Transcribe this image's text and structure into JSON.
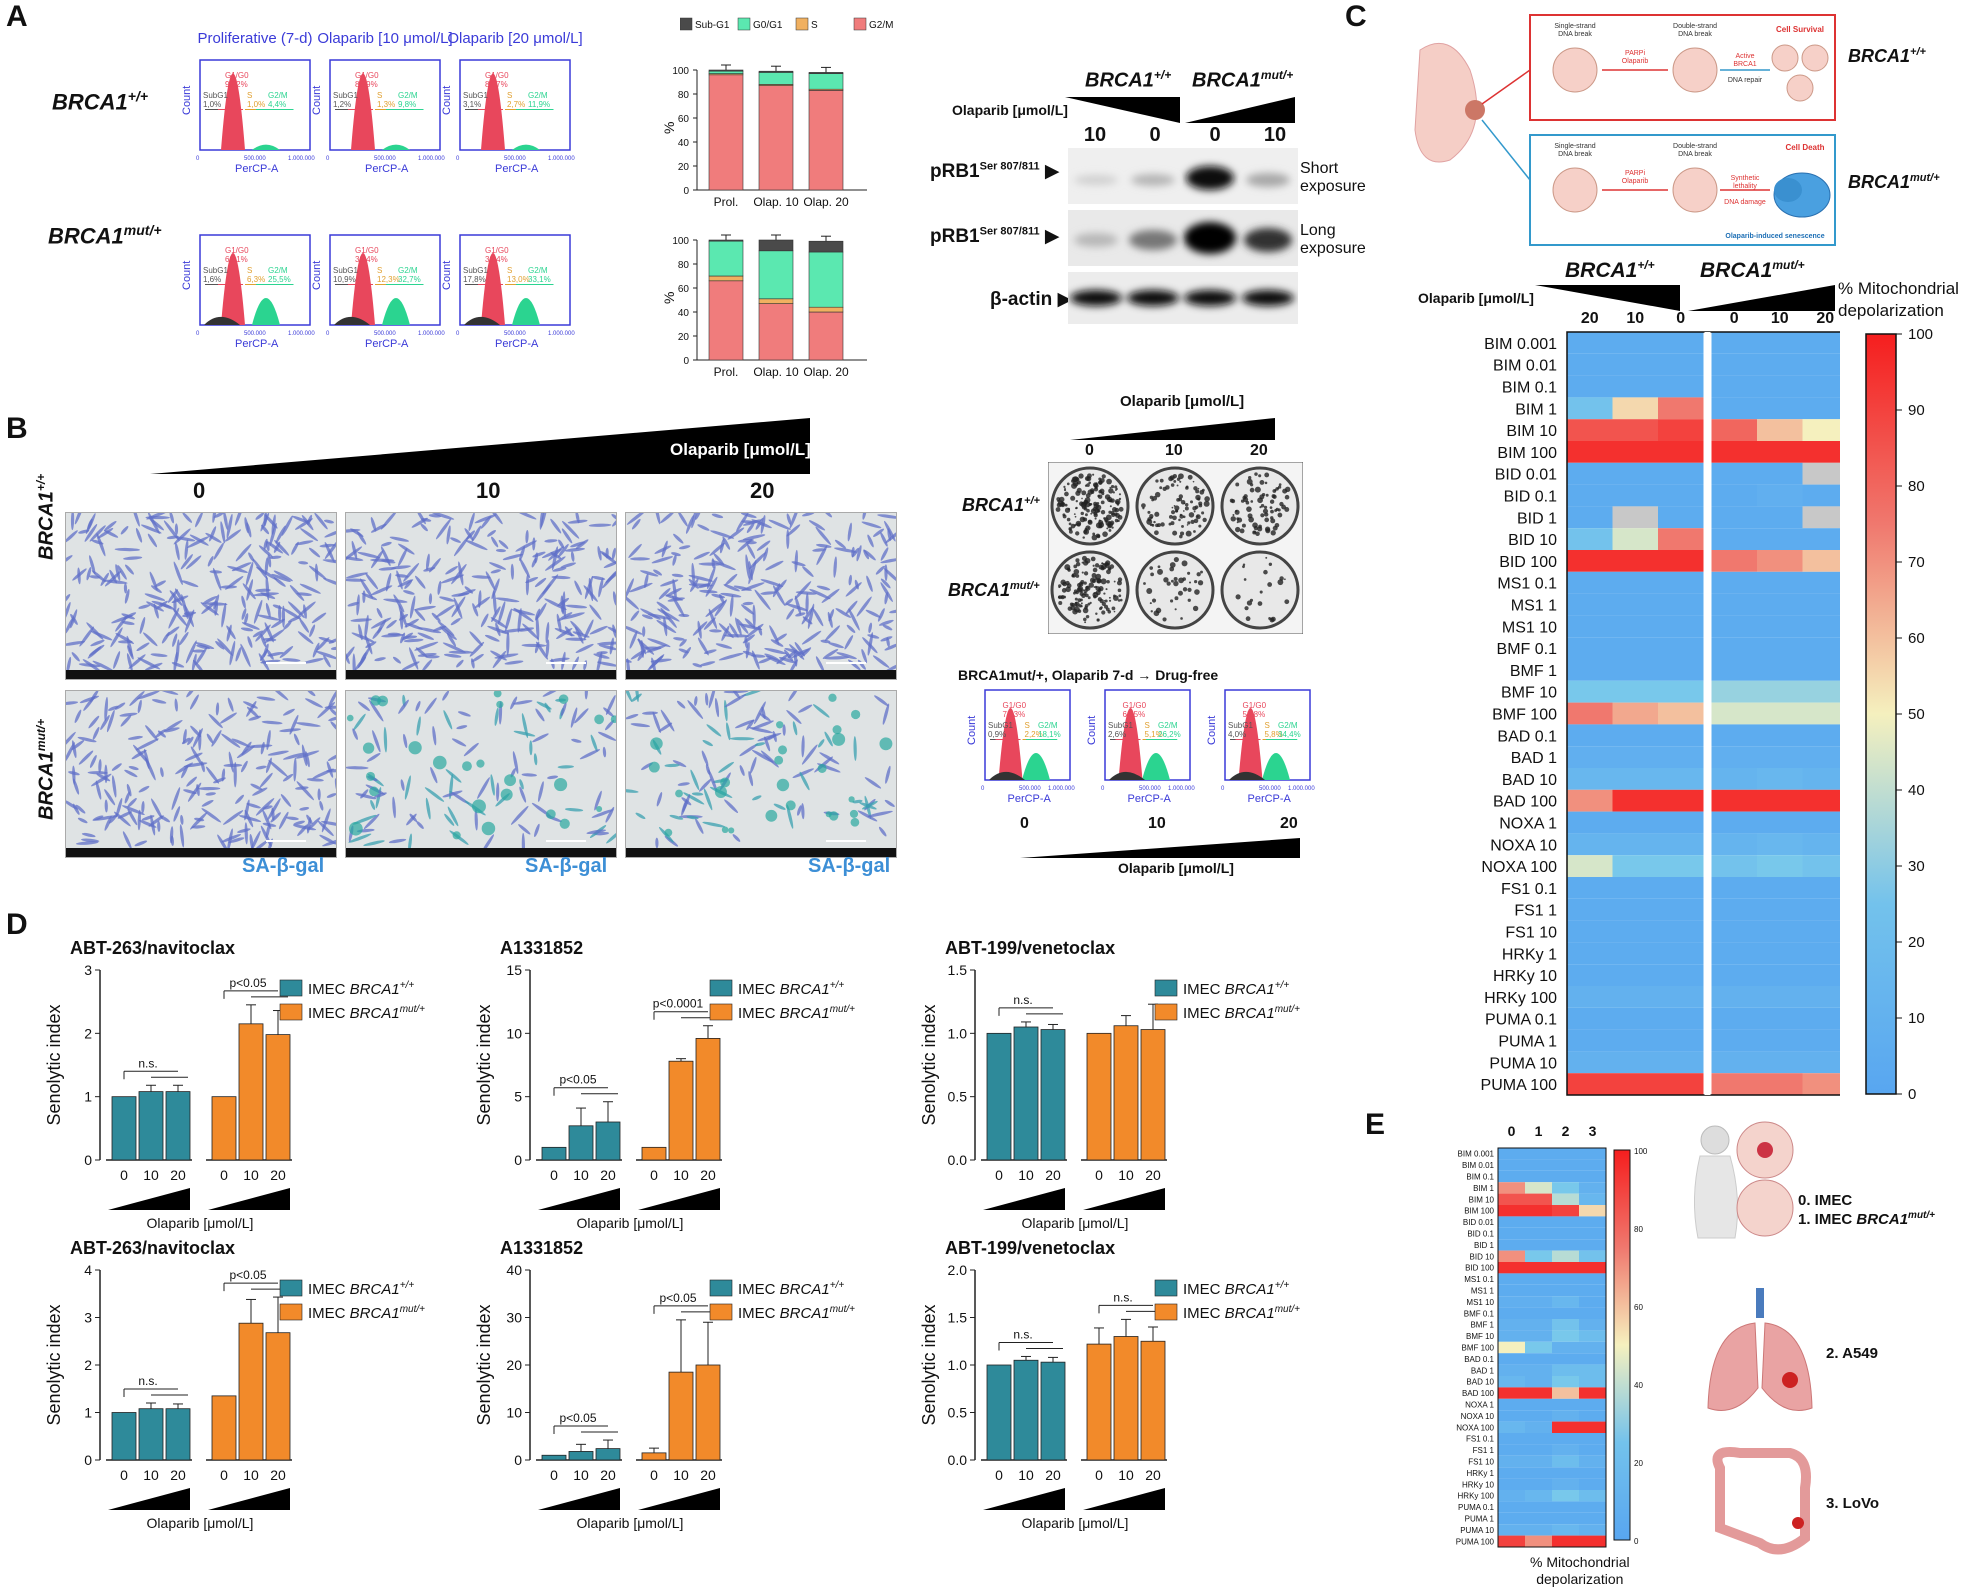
{
  "panels": {
    "a": "A",
    "b": "B",
    "c": "C",
    "d": "D",
    "e": "E"
  },
  "genotypes": {
    "wt": "BRCA1",
    "wt_sup": "+/+",
    "mut": "BRCA1",
    "mut_sup": "mut/+"
  },
  "flow": {
    "titles": [
      "Proliferative (7-d)",
      "Olaparib [10 μmol/L]",
      "Olaparib [20 μmol/L]"
    ],
    "xaxis": "PerCP-A",
    "yaxis": "Count",
    "ticks": [
      "0",
      "500.000",
      "1.000.000"
    ],
    "wt": [
      {
        "g1": "G1/G0\n93,2%",
        "sub": "SubG1\n1,0%",
        "s": "S\n1,0%",
        "g2": "G2/M\n4,4%"
      },
      {
        "g1": "G1/G0\n86,9%",
        "sub": "SubG1\n1,2%",
        "s": "S\n1,3%",
        "g2": "G2/M\n9,8%"
      },
      {
        "g1": "G1/G0\n81,7%",
        "sub": "SubG1\n3,1%",
        "s": "S\n2,7%",
        "g2": "G2/M\n11,9%"
      }
    ],
    "mut": [
      {
        "g1": "G1/G0\n63,1%",
        "sub": "SubG1\n1,6%",
        "s": "S\n6,3%",
        "g2": "G2/M\n25,5%"
      },
      {
        "g1": "G1/G0\n38,4%",
        "sub": "SubG1\n10,9%",
        "s": "S\n12,3%",
        "g2": "G2/M\n32,7%"
      },
      {
        "g1": "G1/G0\n33,4%",
        "sub": "SubG1\n17,8%",
        "s": "S\n13,0%",
        "g2": "G2/M\n33,1%"
      }
    ]
  },
  "cellcycle": {
    "legend": [
      "Sub-G1",
      "G0/G1",
      "S",
      "G2/M"
    ],
    "colors": [
      "#4a4a4a",
      "#5be8b0",
      "#f0b060",
      "#f07c7c"
    ],
    "ylabel": "%",
    "yticks": [
      "0",
      "20",
      "40",
      "60",
      "80",
      "100"
    ],
    "categories": [
      "Prol.",
      "Olap. 10",
      "Olap. 20"
    ]
  },
  "western": {
    "olaparib_label": "Olaparib [μmol/L]",
    "doses": [
      "10",
      "0",
      "0",
      "10"
    ],
    "rows": [
      "pRB1",
      "pRB1",
      "β-actin"
    ],
    "sup": "Ser 807/811",
    "exposures": [
      "Short\nexposure",
      "Long\nexposure"
    ]
  },
  "panelB": {
    "olaparib_label": "Olaparib [μmol/L]",
    "doses": [
      "0",
      "10",
      "20"
    ],
    "stain": "SA-β-gal",
    "colony_doses": [
      "0",
      "10",
      "20"
    ],
    "flow_title": "BRCA1mut/+, Olaparib 7-d → Drug-free",
    "flow_doses": [
      "0",
      "10",
      "20"
    ]
  },
  "panelC": {
    "diagram": {
      "ssb": "Single-strand\nDNA break",
      "parp": "PARPi\nOlaparib",
      "dsb": "Double-strand\nDNA break",
      "active": "Active\nBRCA1",
      "repair": "DNA repair",
      "survival": "Cell Survival",
      "synthetic": "Synthetic\nlethality",
      "damage": "DNA damage",
      "death": "Cell Death",
      "senescence": "Olaparib-induced senescence"
    },
    "olaparib_label": "Olaparib [μmol/L]",
    "doses": [
      "20",
      "10",
      "0",
      "0",
      "10",
      "20"
    ],
    "legend_title": "% Mitochondrial depolarization",
    "legend_ticks": [
      "100",
      "90",
      "80",
      "70",
      "60",
      "50",
      "40",
      "30",
      "20",
      "10",
      "0"
    ],
    "rows": [
      "BIM 0.001",
      "BIM 0.01",
      "BIM 0.1",
      "BIM 1",
      "BIM 10",
      "BIM 100",
      "BID 0.01",
      "BID 0.1",
      "BID 1",
      "BID 10",
      "BID 100",
      "MS1 0.1",
      "MS1 1",
      "MS1 10",
      "BMF 0.1",
      "BMF 1",
      "BMF 10",
      "BMF 100",
      "BAD 0.1",
      "BAD 1",
      "BAD 10",
      "BAD 100",
      "NOXA 1",
      "NOXA 10",
      "NOXA 100",
      "FS1 0.1",
      "FS1 1",
      "FS1 10",
      "HRKy 1",
      "HRKy 10",
      "HRKy 100",
      "PUMA 0.1",
      "PUMA 1",
      "PUMA 10",
      "PUMA 100"
    ],
    "values": [
      [
        5,
        5,
        5,
        5,
        5,
        5
      ],
      [
        5,
        5,
        5,
        5,
        5,
        5
      ],
      [
        5,
        5,
        5,
        5,
        5,
        5
      ],
      [
        25,
        55,
        75,
        5,
        5,
        5
      ],
      [
        85,
        85,
        90,
        80,
        60,
        50
      ],
      [
        95,
        95,
        95,
        95,
        95,
        95
      ],
      [
        5,
        5,
        5,
        5,
        5,
        -1
      ],
      [
        5,
        5,
        5,
        5,
        8,
        5
      ],
      [
        5,
        -1,
        5,
        5,
        5,
        -1
      ],
      [
        25,
        45,
        75,
        5,
        5,
        5
      ],
      [
        95,
        95,
        95,
        75,
        70,
        60
      ],
      [
        5,
        5,
        5,
        5,
        5,
        5
      ],
      [
        5,
        5,
        5,
        5,
        5,
        5
      ],
      [
        5,
        5,
        5,
        5,
        5,
        5
      ],
      [
        5,
        5,
        5,
        5,
        5,
        5
      ],
      [
        5,
        5,
        5,
        5,
        5,
        5
      ],
      [
        30,
        30,
        30,
        35,
        35,
        35
      ],
      [
        75,
        65,
        60,
        45,
        45,
        45
      ],
      [
        5,
        5,
        5,
        5,
        5,
        5
      ],
      [
        8,
        8,
        8,
        8,
        8,
        8
      ],
      [
        15,
        15,
        15,
        12,
        15,
        12
      ],
      [
        70,
        95,
        95,
        95,
        95,
        95
      ],
      [
        5,
        5,
        5,
        5,
        5,
        5
      ],
      [
        12,
        12,
        12,
        12,
        15,
        12
      ],
      [
        45,
        30,
        30,
        25,
        30,
        25
      ],
      [
        5,
        5,
        5,
        5,
        5,
        5
      ],
      [
        5,
        5,
        5,
        5,
        5,
        5
      ],
      [
        5,
        5,
        5,
        5,
        5,
        5
      ],
      [
        5,
        5,
        5,
        5,
        5,
        5
      ],
      [
        5,
        5,
        5,
        5,
        5,
        5
      ],
      [
        10,
        10,
        10,
        10,
        10,
        10
      ],
      [
        5,
        5,
        5,
        5,
        5,
        5
      ],
      [
        5,
        5,
        5,
        5,
        5,
        5
      ],
      [
        10,
        10,
        10,
        10,
        10,
        10
      ],
      [
        90,
        90,
        90,
        75,
        75,
        70
      ]
    ]
  },
  "panelD": {
    "legend_wt": "IMEC BRCA1+/+",
    "legend_mut": "IMEC BRCA1mut/+",
    "ylabel": "Senolytic index",
    "xlabel": "Olaparib [μmol/L]",
    "doses": [
      "0",
      "10",
      "20"
    ],
    "charts": [
      {
        "title": "ABT-263/navitoclax",
        "ymax": 3,
        "yticks": [
          "0",
          "1",
          "2",
          "3"
        ],
        "wt": [
          1,
          1.08,
          1.08
        ],
        "wt_err": [
          0,
          0.1,
          0.1
        ],
        "mut": [
          1,
          2.15,
          1.98
        ],
        "mut_err": [
          0,
          0.3,
          0.38
        ],
        "sig_wt": "n.s.",
        "sig_mut": "p<0.05"
      },
      {
        "title": "A1331852",
        "ymax": 15,
        "yticks": [
          "0",
          "5",
          "10",
          "15"
        ],
        "wt": [
          1,
          2.7,
          3
        ],
        "wt_err": [
          0,
          1.4,
          1.6
        ],
        "mut": [
          1,
          7.8,
          9.6
        ],
        "mut_err": [
          0,
          0.2,
          1
        ],
        "sig_wt": "p<0.05",
        "sig_mut": "p<0.0001"
      },
      {
        "title": "ABT-199/venetoclax",
        "ymax": 1.5,
        "yticks": [
          "0.0",
          "0.5",
          "1.0",
          "1.5"
        ],
        "wt": [
          1,
          1.05,
          1.03
        ],
        "wt_err": [
          0,
          0.04,
          0.04
        ],
        "mut": [
          1,
          1.06,
          1.03
        ],
        "mut_err": [
          0,
          0.08,
          0.2
        ],
        "sig_wt": "n.s.",
        "sig_mut": ""
      },
      {
        "title": "ABT-263/navitoclax",
        "ymax": 4,
        "yticks": [
          "0",
          "1",
          "2",
          "3",
          "4"
        ],
        "wt": [
          1,
          1.08,
          1.08
        ],
        "wt_err": [
          0,
          0.12,
          0.1
        ],
        "mut": [
          1.35,
          2.88,
          2.68
        ],
        "mut_err": [
          0,
          0.5,
          0.75
        ],
        "sig_wt": "n.s.",
        "sig_mut": "p<0.05"
      },
      {
        "title": "A1331852",
        "ymax": 40,
        "yticks": [
          "0",
          "10",
          "20",
          "30",
          "40"
        ],
        "wt": [
          1,
          1.8,
          2.4
        ],
        "wt_err": [
          0,
          1.5,
          1.8
        ],
        "mut": [
          1.5,
          18.5,
          20
        ],
        "mut_err": [
          1,
          11,
          9
        ],
        "sig_wt": "p<0.05",
        "sig_mut": "p<0.05"
      },
      {
        "title": "ABT-199/venetoclax",
        "ymax": 2,
        "yticks": [
          "0.0",
          "0.5",
          "1.0",
          "1.5",
          "2.0"
        ],
        "wt": [
          1,
          1.05,
          1.03
        ],
        "wt_err": [
          0,
          0.04,
          0.05
        ],
        "mut": [
          1.22,
          1.3,
          1.25
        ],
        "mut_err": [
          0.17,
          0.18,
          0.15
        ],
        "sig_wt": "n.s.",
        "sig_mut": "n.s."
      }
    ]
  },
  "panelE": {
    "columns": [
      "0",
      "1",
      "2",
      "3"
    ],
    "rows": [
      "BIM 0.001",
      "BIM 0.01",
      "BIM 0.1",
      "BIM 1",
      "BIM 10",
      "BIM 100",
      "BID 0.01",
      "BID 0.1",
      "BID 1",
      "BID 10",
      "BID 100",
      "MS1 0.1",
      "MS1 1",
      "MS1 10",
      "BMF 0.1",
      "BMF 1",
      "BMF 10",
      "BMF 100",
      "BAD 0.1",
      "BAD 1",
      "BAD 10",
      "BAD 100",
      "NOXA 1",
      "NOXA 10",
      "NOXA 100",
      "FS1 0.1",
      "FS1 1",
      "FS1 10",
      "HRKy 1",
      "HRKy 10",
      "HRKy 100",
      "PUMA 0.1",
      "PUMA 1",
      "PUMA 10",
      "PUMA 100"
    ],
    "values": [
      [
        5,
        5,
        5,
        5
      ],
      [
        5,
        5,
        5,
        5
      ],
      [
        5,
        5,
        5,
        5
      ],
      [
        70,
        45,
        30,
        10
      ],
      [
        85,
        85,
        40,
        15
      ],
      [
        95,
        95,
        90,
        55
      ],
      [
        5,
        5,
        5,
        5
      ],
      [
        5,
        5,
        5,
        5
      ],
      [
        5,
        5,
        5,
        5
      ],
      [
        70,
        30,
        40,
        25
      ],
      [
        95,
        95,
        95,
        95
      ],
      [
        5,
        5,
        5,
        5
      ],
      [
        5,
        5,
        5,
        5
      ],
      [
        8,
        8,
        15,
        5
      ],
      [
        5,
        5,
        5,
        5
      ],
      [
        10,
        10,
        25,
        10
      ],
      [
        10,
        10,
        30,
        20
      ],
      [
        50,
        30,
        10,
        10
      ],
      [
        5,
        5,
        5,
        5
      ],
      [
        10,
        10,
        20,
        20
      ],
      [
        15,
        10,
        30,
        20
      ],
      [
        95,
        95,
        60,
        95
      ],
      [
        5,
        5,
        5,
        5
      ],
      [
        5,
        5,
        10,
        5
      ],
      [
        15,
        10,
        95,
        95
      ],
      [
        5,
        5,
        5,
        5
      ],
      [
        5,
        5,
        10,
        5
      ],
      [
        10,
        10,
        20,
        10
      ],
      [
        5,
        5,
        5,
        5
      ],
      [
        5,
        5,
        10,
        5
      ],
      [
        10,
        15,
        30,
        20
      ],
      [
        5,
        5,
        5,
        5
      ],
      [
        5,
        5,
        5,
        5
      ],
      [
        10,
        10,
        15,
        10
      ],
      [
        90,
        70,
        95,
        95
      ]
    ],
    "legend_ticks": [
      "100",
      "80",
      "60",
      "40",
      "20",
      "0"
    ],
    "legend_title": "% Mitochondrial\ndepolarization",
    "models": [
      "0. IMEC",
      "1. IMEC ",
      "BRCA1",
      "mut/+",
      "2. A549",
      "3. LoVo"
    ]
  }
}
